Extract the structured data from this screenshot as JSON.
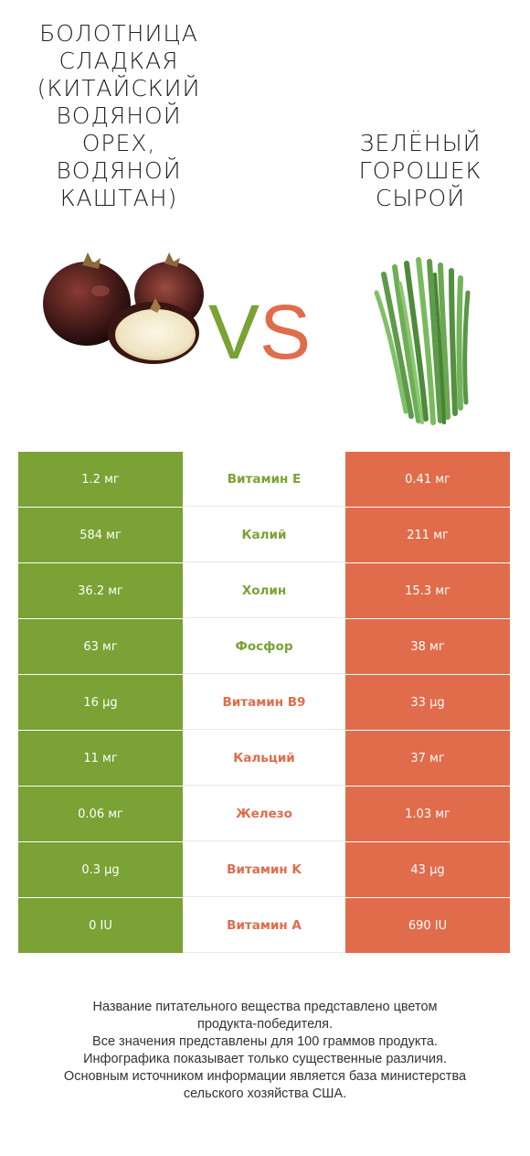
{
  "left_food": {
    "title": "БОЛОТНИЦА СЛАДКАЯ (КИТАЙСКИЙ ВОДЯНОЙ ОРЕХ, ВОДЯНОЙ КАШТАН)",
    "title_lines": [
      "БОЛОТНИЦА",
      "СЛАДКАЯ",
      "(КИТАЙСКИЙ",
      "ВОДЯНОЙ",
      "ОРЕХ,",
      "ВОДЯНОЙ",
      "КАШТАН)"
    ],
    "color": "#7aa234"
  },
  "right_food": {
    "title": "ЗЕЛЁНЫЙ ГОРОШЕК СЫРОЙ",
    "title_lines": [
      "ЗЕЛЁНЫЙ",
      "ГОРОШЕК",
      "СЫРОЙ"
    ],
    "color": "#e06c4b"
  },
  "vs": {
    "v": "V",
    "s": "S"
  },
  "rows": [
    {
      "left": "1.2 мг",
      "name": "Витамин E",
      "right": "0.41 мг",
      "winner": "left"
    },
    {
      "left": "584 мг",
      "name": "Калий",
      "right": "211 мг",
      "winner": "left"
    },
    {
      "left": "36.2 мг",
      "name": "Холин",
      "right": "15.3 мг",
      "winner": "left"
    },
    {
      "left": "63 мг",
      "name": "Фосфор",
      "right": "38 мг",
      "winner": "left"
    },
    {
      "left": "16 µg",
      "name": "Витамин B9",
      "right": "33 µg",
      "winner": "right"
    },
    {
      "left": "11 мг",
      "name": "Кальций",
      "right": "37 мг",
      "winner": "right"
    },
    {
      "left": "0.06 мг",
      "name": "Железо",
      "right": "1.03 мг",
      "winner": "right"
    },
    {
      "left": "0.3 µg",
      "name": "Витамин K",
      "right": "43 µg",
      "winner": "right"
    },
    {
      "left": "0 IU",
      "name": "Витамин A",
      "right": "690 IU",
      "winner": "right"
    }
  ],
  "footer": {
    "line1": "Название питательного вещества представлено цветом",
    "line2": "продукта-победителя.",
    "line3": "Все значения представлены для 100 граммов продукта.",
    "line4": "Инфографика показывает только существенные различия.",
    "line5": "Основным источником информации является база министерства",
    "line6": "сельского хозяйства США."
  }
}
